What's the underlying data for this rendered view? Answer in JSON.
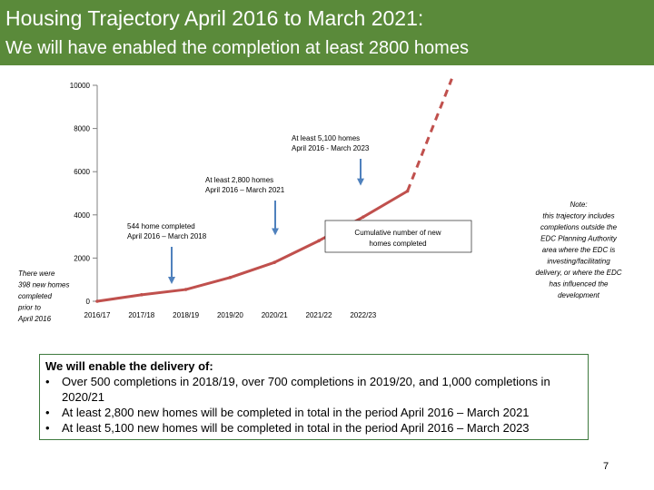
{
  "header": {
    "title": "Housing Trajectory April 2016 to March 2021:",
    "subtitle": "We will have enabled the completion at least 2800 homes"
  },
  "colors": {
    "header_bg": "#5a8a3a",
    "line": "#c0504d",
    "arrow": "#4f81bd",
    "box_border": "#3e7a3e"
  },
  "chart_data": {
    "type": "line",
    "title": "",
    "xlabel": "",
    "ylabel": "",
    "categories": [
      "2016/17",
      "2017/18",
      "2018/19",
      "2019/20",
      "2020/21",
      "2021/22",
      "2022/23"
    ],
    "y_ticks": [
      "0",
      "2000",
      "4000",
      "6000",
      "8000",
      "10000"
    ],
    "ylim": [
      0,
      10000
    ],
    "grid": false,
    "series": [
      {
        "name": "Cumulative number of new homes completed",
        "style": "solid",
        "points": [
          {
            "x": "2016/17",
            "y": 0
          },
          {
            "x": "2017/18",
            "y": 300
          },
          {
            "x": "2018/19",
            "y": 544
          },
          {
            "x": "2019/20",
            "y": 1100
          },
          {
            "x": "2020/21",
            "y": 1800
          },
          {
            "x": "2021/22",
            "y": 2800
          },
          {
            "x": "2022/23",
            "y": 3900
          },
          {
            "x": "2023/24",
            "y": 5100
          }
        ]
      },
      {
        "name": "",
        "style": "dashed",
        "points": [
          {
            "x": "2023/24",
            "y": 5100
          },
          {
            "x": "2024/25",
            "y": 10300
          }
        ]
      }
    ],
    "annotations": [
      {
        "id": "a544",
        "lines": [
          "544 home completed",
          "April 2016 – March 2018"
        ],
        "target_x": "2018/19",
        "target_y": 544
      },
      {
        "id": "a2800",
        "lines": [
          "At least 2,800 homes",
          "April 2016 – March 2021"
        ],
        "target_x": "2021/22",
        "target_y": 2800
      },
      {
        "id": "a5100",
        "lines": [
          "At least 5,100 homes",
          "April 2016 - March 2023"
        ],
        "target_x": "2023/24",
        "target_y": 5100
      }
    ],
    "series_label": [
      "Cumulative number of new",
      "homes completed"
    ],
    "prior_note": [
      "There were",
      "398 new homes",
      "completed",
      "prior to",
      "April 2016"
    ],
    "side_note": [
      "Note:",
      "this trajectory includes",
      "completions outside the",
      "EDC Planning Authority",
      "area where the EDC is",
      "investing/facilitating",
      "delivery, or where the EDC",
      "has influenced the",
      "development"
    ]
  },
  "delivery": {
    "heading": "We will enable the delivery of:",
    "bullets": [
      [
        "Over 500 completions in 2018/19, over 700 completions in 2019/20, and 1,000 completions in",
        "2020/21"
      ],
      [
        "At least 2,800 new homes will be completed in total in the period April 2016 – March 2021"
      ],
      [
        "At least 5,100 new homes will be completed in total in the period April 2016 – March 2023"
      ]
    ],
    "bullet_glyph": "•"
  },
  "page_number": "7"
}
